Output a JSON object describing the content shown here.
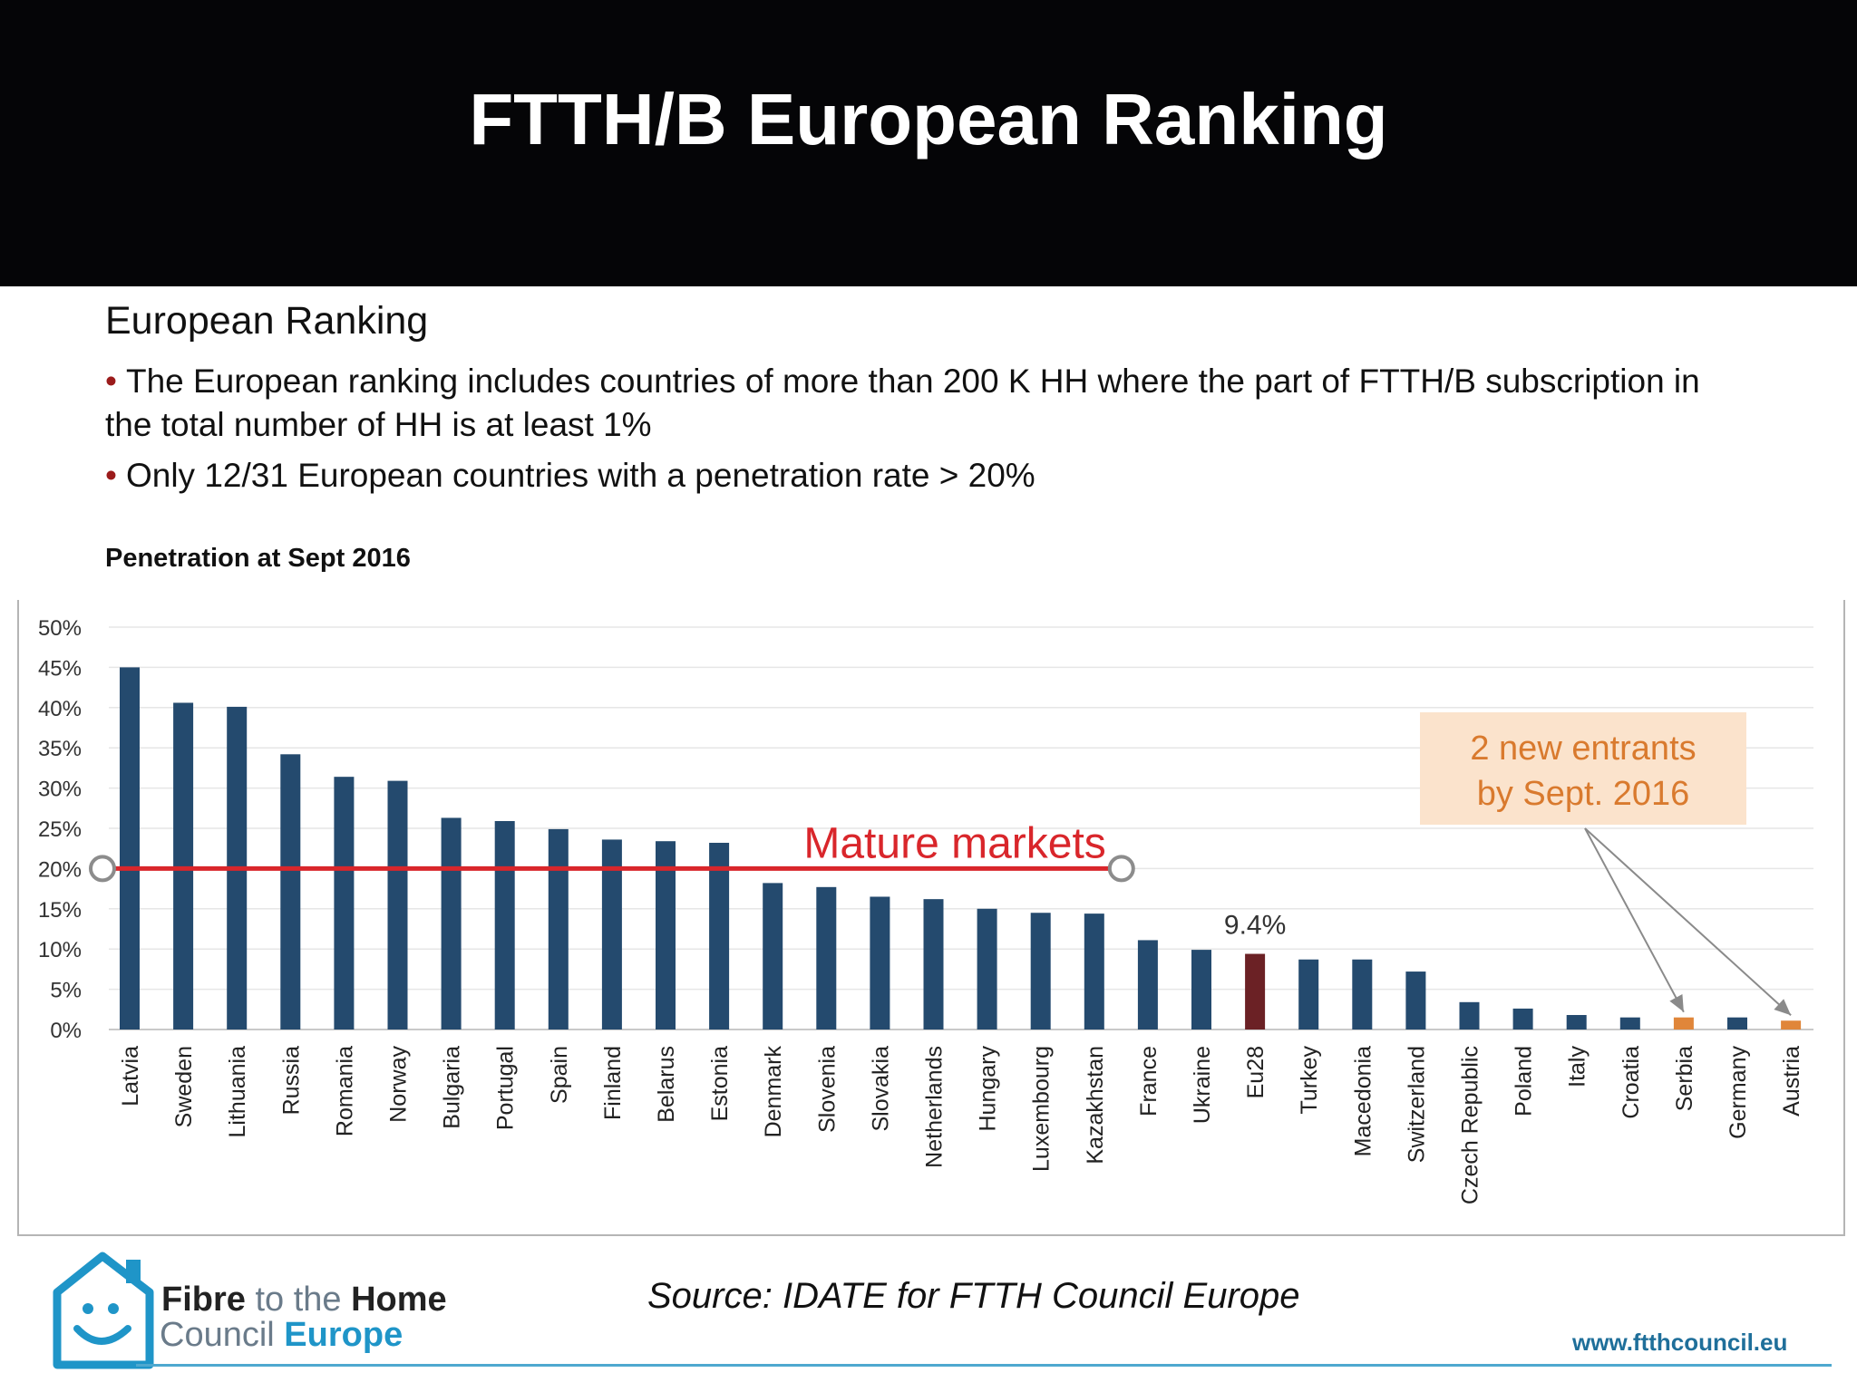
{
  "header": {
    "title": "FTTH/B European Ranking"
  },
  "content": {
    "subtitle": "European Ranking",
    "bullets": [
      "The European ranking includes countries of more than 200 K HH where the part of FTTH/B subscription in the total number of HH is at least 1%",
      "Only 12/31 European countries with a penetration rate > 20%"
    ]
  },
  "chart_data": {
    "type": "bar",
    "title": "Penetration at Sept 2016",
    "xlabel": "",
    "ylabel": "",
    "ylim": [
      0,
      50
    ],
    "yticks": [
      "0%",
      "5%",
      "10%",
      "15%",
      "20%",
      "25%",
      "30%",
      "35%",
      "40%",
      "45%",
      "50%"
    ],
    "categories": [
      "Latvia",
      "Sweden",
      "Lithuania",
      "Russia",
      "Romania",
      "Norway",
      "Bulgaria",
      "Portugal",
      "Spain",
      "Finland",
      "Belarus",
      "Estonia",
      "Denmark",
      "Slovenia",
      "Slovakia",
      "Netherlands",
      "Hungary",
      "Luxembourg",
      "Kazakhstan",
      "France",
      "Ukraine",
      "Eu28",
      "Turkey",
      "Macedonia",
      "Switzerland",
      "Czech Republic",
      "Poland",
      "Italy",
      "Croatia",
      "Serbia",
      "Germany",
      "Austria"
    ],
    "values": [
      45.0,
      40.6,
      40.1,
      34.2,
      31.4,
      30.9,
      26.3,
      25.9,
      24.9,
      23.6,
      23.4,
      23.2,
      18.2,
      17.7,
      16.5,
      16.2,
      15.0,
      14.5,
      14.4,
      11.1,
      9.9,
      9.4,
      8.7,
      8.7,
      7.2,
      3.4,
      2.6,
      1.8,
      1.5,
      1.5,
      1.5,
      1.1
    ],
    "bar_colors": {
      "default": "#244a6e",
      "Eu28": "#6b2125",
      "Serbia": "#e0863a",
      "Austria": "#e0863a"
    },
    "grid": true,
    "annotations": {
      "eu28_label": "9.4%",
      "mature_label": "Mature markets",
      "mature_threshold": 20,
      "mature_line_color": "#d9262b",
      "new_entrants_line1": "2 new entrants",
      "new_entrants_line2": "by Sept. 2016",
      "new_entrants_targets": [
        "Serbia",
        "Austria"
      ]
    }
  },
  "footer": {
    "source": "Source: IDATE for FTTH Council Europe",
    "logo_line1_a": "Fibre",
    "logo_line1_b": "to the",
    "logo_line1_c": "Home",
    "logo_line2_a": "Council",
    "logo_line2_b": "Europe",
    "url": "www.ftthcouncil.eu"
  }
}
